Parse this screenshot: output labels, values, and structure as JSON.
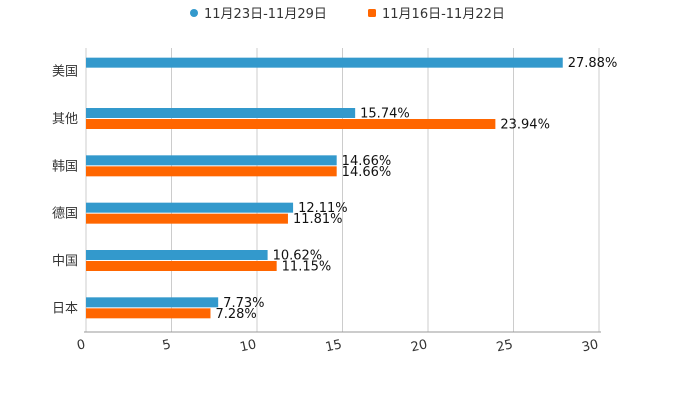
{
  "chart_data": {
    "type": "bar",
    "orientation": "horizontal",
    "categories": [
      "美国",
      "其他",
      "韩国",
      "德国",
      "中国",
      "日本"
    ],
    "series": [
      {
        "name": "11月23日-11月29日",
        "color": "#3399cc",
        "values": [
          27.88,
          15.74,
          14.66,
          12.11,
          10.62,
          7.73
        ],
        "labels": [
          "27.88%",
          "15.74%",
          "14.66%",
          "12.11%",
          "10.62%",
          "7.73%"
        ]
      },
      {
        "name": "11月16日-11月22日",
        "color": "#ff6600",
        "values": [
          null,
          23.94,
          14.66,
          11.81,
          11.15,
          7.28
        ],
        "labels": [
          null,
          "23.94%",
          "14.66%",
          "11.81%",
          "11.15%",
          "7.28%"
        ]
      }
    ],
    "xlim": [
      0,
      30
    ],
    "xticks": [
      "0",
      "5",
      "10",
      "15",
      "20",
      "25",
      "30"
    ],
    "grid": true,
    "legend": "top-center",
    "title": "",
    "xlabel": "",
    "ylabel": ""
  }
}
